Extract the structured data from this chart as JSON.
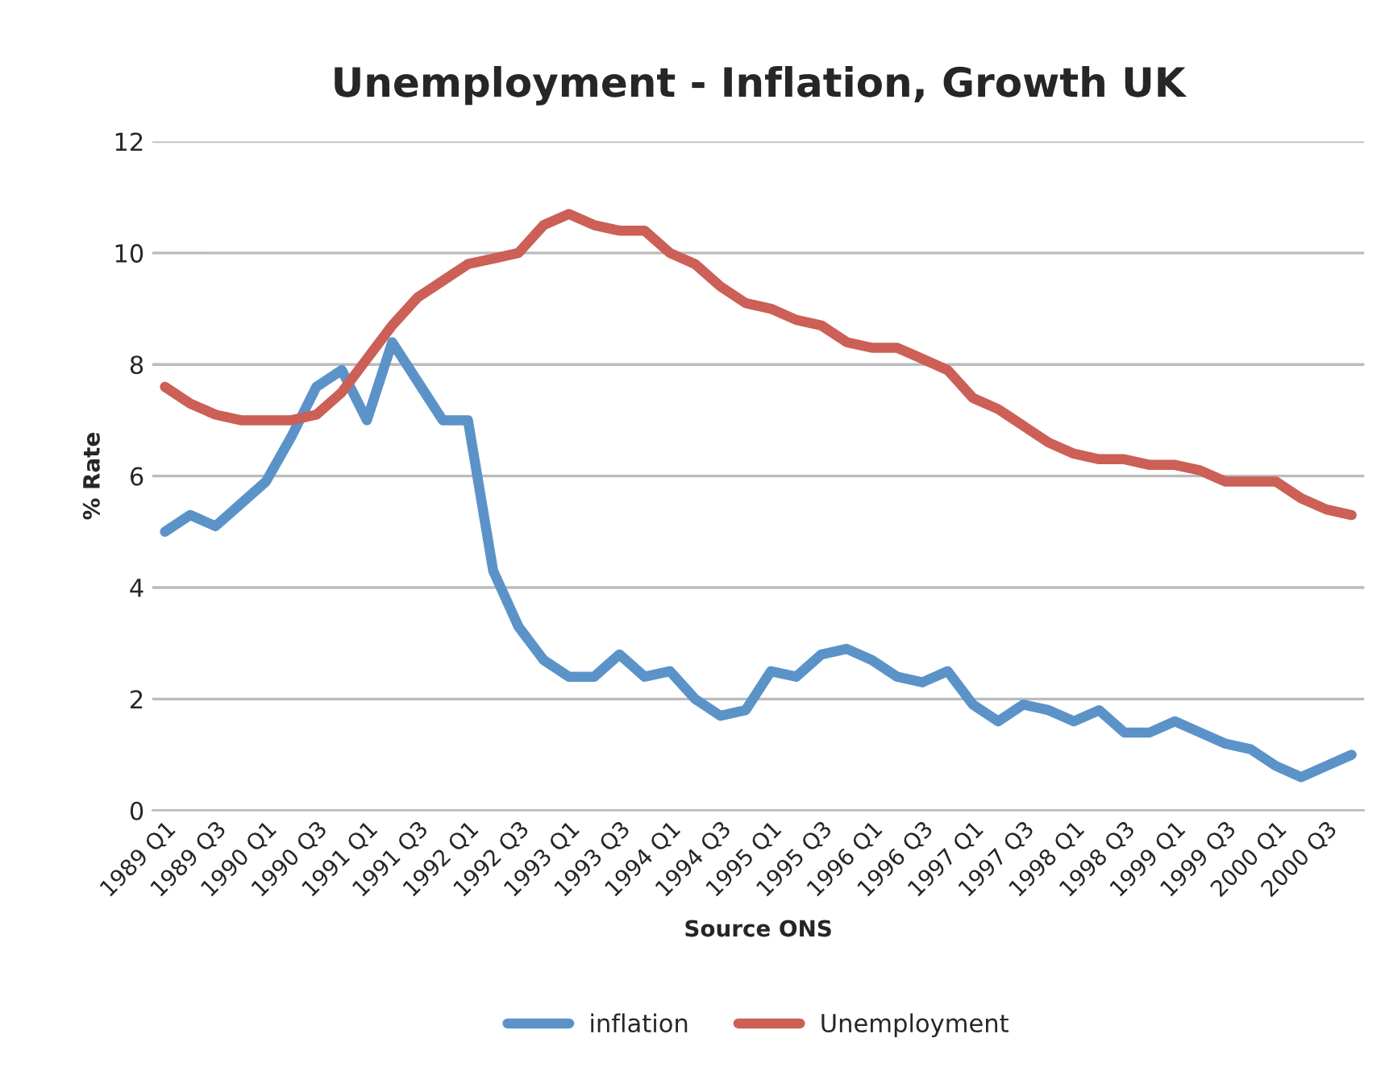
{
  "chart_data": {
    "type": "line",
    "title": "Unemployment - Inflation, Growth UK",
    "xlabel": "Source ONS",
    "ylabel": "% Rate",
    "categories": [
      "1989 Q1",
      null,
      "1989 Q3",
      null,
      "1990 Q1",
      null,
      "1990 Q3",
      null,
      "1991 Q1",
      null,
      "1991 Q3",
      null,
      "1992 Q1",
      null,
      "1992 Q3",
      null,
      "1993 Q1",
      null,
      "1993 Q3",
      null,
      "1994 Q1",
      null,
      "1994 Q3",
      null,
      "1995 Q1",
      null,
      "1995 Q3",
      null,
      "1996 Q1",
      null,
      "1996 Q3",
      null,
      "1997 Q1",
      null,
      "1997 Q3",
      null,
      "1998 Q1",
      null,
      "1998 Q3",
      null,
      "1999 Q1",
      null,
      "1999 Q3",
      null,
      "2000 Q1",
      null,
      "2000 Q3",
      null
    ],
    "series": [
      {
        "name": "inflation",
        "color": "#5b93c9",
        "values": [
          5.0,
          5.3,
          5.1,
          5.5,
          5.9,
          6.7,
          7.6,
          7.9,
          7.0,
          8.4,
          7.7,
          7.0,
          7.0,
          4.3,
          3.3,
          2.7,
          2.4,
          2.4,
          2.8,
          2.4,
          2.5,
          2.0,
          1.7,
          1.8,
          2.5,
          2.4,
          2.8,
          2.9,
          2.7,
          2.4,
          2.3,
          2.5,
          1.9,
          1.6,
          1.9,
          1.8,
          1.6,
          1.8,
          1.4,
          1.4,
          1.6,
          1.4,
          1.2,
          1.1,
          0.8,
          0.6,
          0.8,
          1.0
        ]
      },
      {
        "name": "Unemployment",
        "color": "#cc5f56",
        "values": [
          7.6,
          7.3,
          7.1,
          7.0,
          7.0,
          7.0,
          7.1,
          7.5,
          8.1,
          8.7,
          9.2,
          9.5,
          9.8,
          9.9,
          10.0,
          10.5,
          10.7,
          10.5,
          10.4,
          10.4,
          10.0,
          9.8,
          9.4,
          9.1,
          9.0,
          8.8,
          8.7,
          8.4,
          8.3,
          8.3,
          8.1,
          7.9,
          7.4,
          7.2,
          6.9,
          6.6,
          6.4,
          6.3,
          6.3,
          6.2,
          6.2,
          6.1,
          5.9,
          5.9,
          5.9,
          5.6,
          5.4,
          5.3
        ]
      }
    ],
    "ylim": [
      0,
      12
    ],
    "yticks": [
      0,
      2,
      4,
      6,
      8,
      10,
      12
    ],
    "grid": "y",
    "legend": "bottom",
    "line_style": "solid",
    "marker": "none"
  }
}
